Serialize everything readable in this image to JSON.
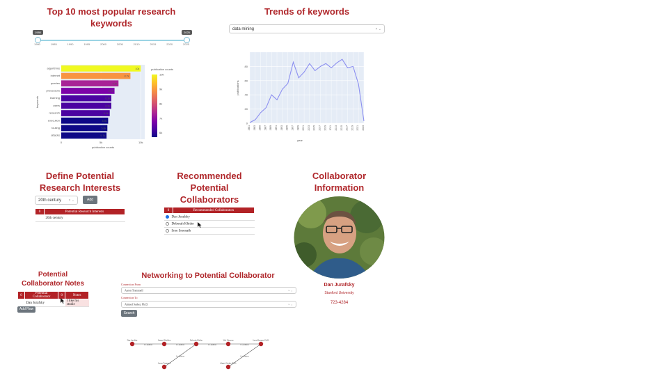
{
  "top_keywords": {
    "title_line1": "Top 10 most popular research",
    "title_line2": "keywords",
    "slider": {
      "min_label": "1980",
      "max_label": "2025",
      "ticks": [
        "1980",
        "1985",
        "1990",
        "1995",
        "2000",
        "2005",
        "2010",
        "2015",
        "2020",
        "2025"
      ]
    },
    "colorbar": {
      "title": "publication counts",
      "ticks": [
        "10k",
        "9k",
        "8k",
        "7k",
        "6k"
      ]
    },
    "x_ticks": [
      "0",
      "5k",
      "10k"
    ],
    "xlabel": "publication counts",
    "ylabel": "keywords"
  },
  "trends": {
    "title": "Trends of keywords",
    "dropdown_value": "data mining",
    "dropdown_clear": "×",
    "dropdown_arrow": "⌄"
  },
  "chart_data": [
    {
      "type": "bar",
      "orientation": "horizontal",
      "categories": [
        "algorithms",
        "internet",
        "queries",
        "processors",
        "learning",
        "users",
        "research",
        "execution",
        "routing",
        "attacks"
      ],
      "values": [
        10000,
        8700,
        7200,
        6700,
        6300,
        6300,
        6100,
        5900,
        5800,
        5700
      ],
      "data_labels": [
        "10k",
        "8.7k",
        "7.2k",
        "6.7k",
        "6.3k",
        "6.3k",
        "6.1k",
        "5.9k",
        "5.8k",
        "5.7k"
      ],
      "xlabel": "publication counts",
      "ylabel": "keywords",
      "xlim": [
        0,
        10500
      ],
      "colorscale": "plasma",
      "color_range": [
        5700,
        10000
      ]
    },
    {
      "type": "line",
      "x": [
        1980,
        1982,
        1984,
        1986,
        1988,
        1990,
        1992,
        1994,
        1996,
        1998,
        2000,
        2002,
        2004,
        2006,
        2008,
        2010,
        2012,
        2014,
        2016,
        2018,
        2020,
        2022
      ],
      "x_tick_labels": [
        "1981",
        "1983",
        "1985",
        "1987",
        "1989",
        "1991",
        "1993",
        "1995",
        "1997",
        "1999",
        "2001",
        "2003",
        "2005",
        "2007",
        "2009",
        "2011",
        "2013",
        "2015",
        "2017",
        "2019",
        "2021",
        "2023"
      ],
      "y": [
        1,
        5,
        15,
        22,
        40,
        33,
        48,
        56,
        86,
        64,
        72,
        84,
        74,
        80,
        84,
        78,
        85,
        90,
        78,
        80,
        55,
        3
      ],
      "xlabel": "year",
      "ylabel": "publications",
      "ylim": [
        0,
        100
      ],
      "y_ticks": [
        0,
        20,
        40,
        60,
        80
      ],
      "line_color": "#8c8ff0",
      "grid": true
    }
  ],
  "define_interests": {
    "title_line1": "Define Potential",
    "title_line2": "Research Interests",
    "dropdown_value": "20th century",
    "dropdown_clear": "×",
    "dropdown_arrow": "⌄",
    "add_label": "Add",
    "col_index": "0",
    "col_header": "Potential Research Interests",
    "rows": [
      "20th century"
    ]
  },
  "recommended": {
    "title_line1": "Recommended",
    "title_line2": "Potential",
    "title_line3": "Collaborators",
    "col_index": "0",
    "col_header": "Recommended Collaborators",
    "rows": [
      "Dan Jurafsky",
      "Deborah Khider",
      "Sree Sreenath"
    ]
  },
  "collaborator_info": {
    "title_line1": "Collaborator",
    "title_line2": "Information",
    "name": "Dan Jurafsky",
    "affiliation": "Stanford University",
    "phone": "723-4284"
  },
  "notes": {
    "title_line1": "Potential",
    "title_line2": "Collaborator Notes",
    "col_index": "0",
    "col_name": "Potential Collaborator",
    "col_index2": "0",
    "col_notes": "Notes",
    "row_name": "Dan Jurafsky",
    "row_note": "I like his studie",
    "add_row_label": "Add Row"
  },
  "networking": {
    "title": "Networking to Potential Collaborator",
    "from_label": "Connection From",
    "from_value": "Aaron Trammell",
    "to_label": "Connection To",
    "to_value": "Ahmed Sarker, Ph.D.",
    "clear": "×",
    "arrow": "⌄",
    "search_label": "Search",
    "graph": {
      "nodes": [
        "Dan Jurafsky",
        "Samuel Madden",
        "Deborah Khider",
        "Wei Xiaoyun",
        "Jason Brenner, Ph.D.",
        "Aaron Trammell",
        "Ahmed Sarker, Ph.D."
      ],
      "edge_label": "Co-Authors"
    }
  },
  "colors": {
    "accent": "#b0282c",
    "table_header": "#b22226",
    "button": "#6c757d"
  }
}
